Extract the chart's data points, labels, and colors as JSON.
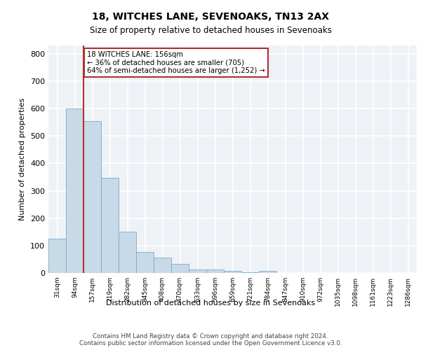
{
  "title1": "18, WITCHES LANE, SEVENOAKS, TN13 2AX",
  "title2": "Size of property relative to detached houses in Sevenoaks",
  "xlabel": "Distribution of detached houses by size in Sevenoaks",
  "ylabel": "Number of detached properties",
  "bar_labels": [
    "31sqm",
    "94sqm",
    "157sqm",
    "219sqm",
    "282sqm",
    "345sqm",
    "408sqm",
    "470sqm",
    "533sqm",
    "596sqm",
    "659sqm",
    "721sqm",
    "784sqm",
    "847sqm",
    "910sqm",
    "972sqm",
    "1035sqm",
    "1098sqm",
    "1161sqm",
    "1223sqm",
    "1286sqm"
  ],
  "bar_values": [
    125,
    600,
    555,
    348,
    150,
    76,
    55,
    33,
    14,
    13,
    8,
    3,
    8,
    0,
    0,
    0,
    0,
    0,
    0,
    0,
    0
  ],
  "bar_color": "#c8d9e8",
  "bar_edge_color": "#7aaac8",
  "property_line_idx": 2,
  "property_line_color": "#b03030",
  "annotation_line1": "18 WITCHES LANE: 156sqm",
  "annotation_line2": "← 36% of detached houses are smaller (705)",
  "annotation_line3": "64% of semi-detached houses are larger (1,252) →",
  "annotation_box_color": "#b03030",
  "ylim_max": 830,
  "yticks": [
    0,
    100,
    200,
    300,
    400,
    500,
    600,
    700,
    800
  ],
  "bg_color": "#eef2f7",
  "grid_color": "#ffffff",
  "footer_line1": "Contains HM Land Registry data © Crown copyright and database right 2024.",
  "footer_line2": "Contains public sector information licensed under the Open Government Licence v3.0."
}
